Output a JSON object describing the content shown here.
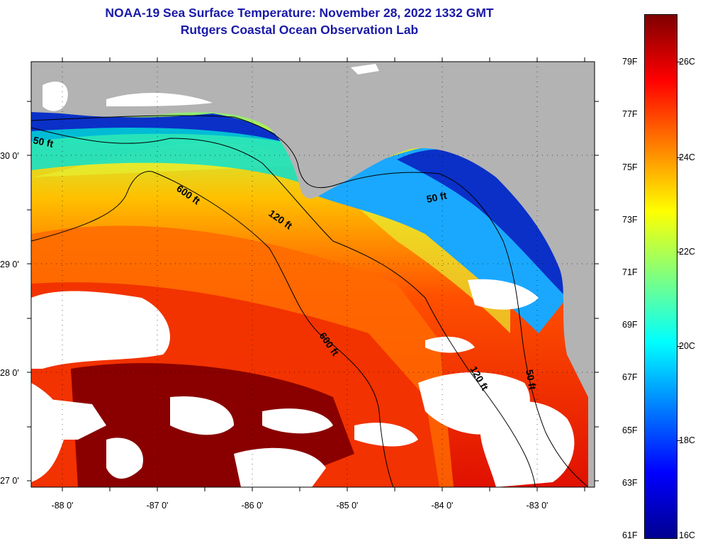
{
  "title": {
    "line1": "NOAA-19 Sea Surface Temperature:  November 28, 2022 1332 GMT",
    "line2": "Rutgers Coastal Ocean Observation Lab"
  },
  "map": {
    "lat_labels": [
      "30 0'",
      "29 0'",
      "28 0'",
      "27 0'"
    ],
    "lon_labels": [
      "-88 0'",
      "-87 0'",
      "-86 0'",
      "-85 0'",
      "-84 0'",
      "-83 0'"
    ],
    "contour_labels": [
      "50 ft",
      "600 ft",
      "120 ft",
      "50 ft",
      "600 ft",
      "120 ft",
      "50 ft"
    ],
    "land_color": "#b3b3b3",
    "cloud_color": "#ffffff"
  },
  "colorbar": {
    "fahrenheit_labels": [
      "79F",
      "77F",
      "75F",
      "73F",
      "71F",
      "69F",
      "67F",
      "65F",
      "63F",
      "61F"
    ],
    "celsius_labels": [
      "26C",
      "24C",
      "22C",
      "20C",
      "18C",
      "16C"
    ],
    "range_celsius": [
      16,
      27
    ],
    "colormap": [
      "#00008f",
      "#0000ff",
      "#007fff",
      "#00ffff",
      "#7fff7f",
      "#ffff00",
      "#ff7f00",
      "#ff0000",
      "#7f0000"
    ]
  }
}
